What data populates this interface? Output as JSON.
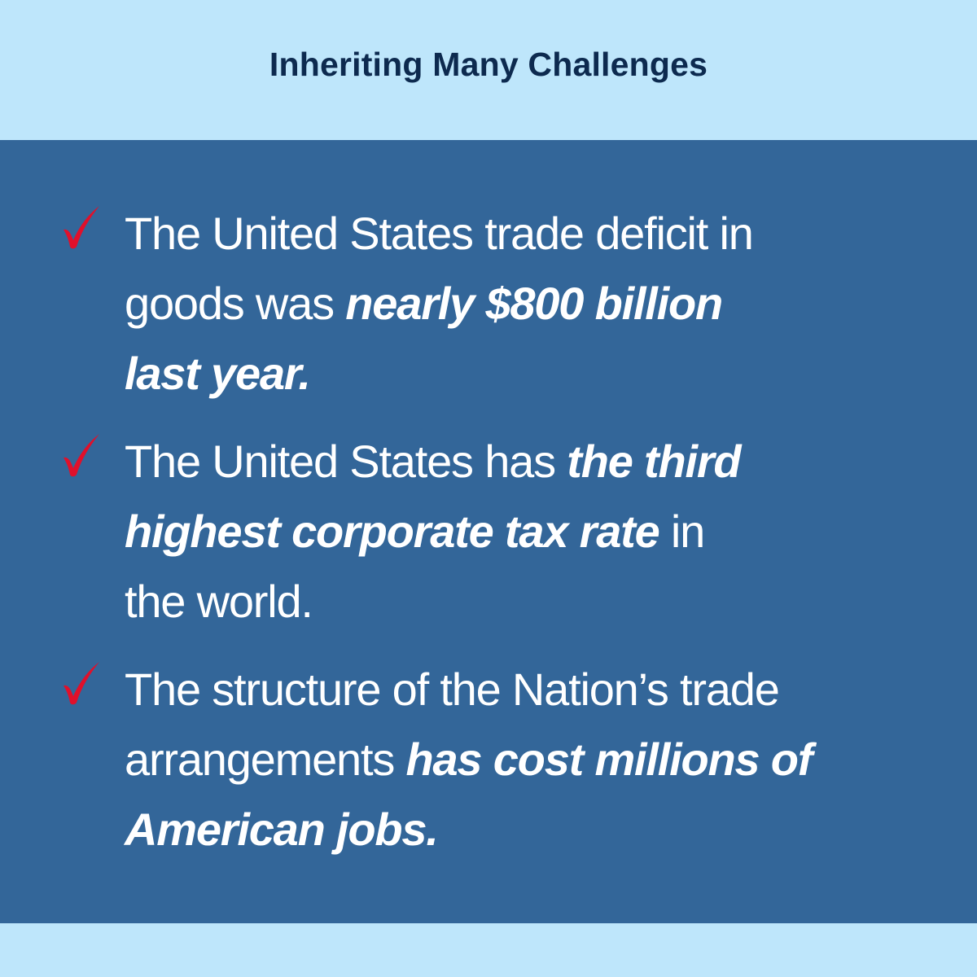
{
  "header": {
    "title": "Inheriting Many Challenges"
  },
  "colors": {
    "header_bg": "#bee6fb",
    "panel_bg": "#336699",
    "title_text": "#0d2a4f",
    "body_text": "#ffffff",
    "check_mark": "#e0102b"
  },
  "items": [
    {
      "icon": "check-mark-icon",
      "lines": [
        {
          "plain": "The United States trade deficit in",
          "emphasis": ""
        },
        {
          "plain": "goods was ",
          "emphasis": "nearly $800 billion"
        },
        {
          "plain": "",
          "emphasis": "last year."
        }
      ]
    },
    {
      "icon": "check-mark-icon",
      "lines": [
        {
          "plain": "The United States has ",
          "emphasis": "the third"
        },
        {
          "emphasis": "highest corporate tax rate",
          "plain_after": " in"
        },
        {
          "plain": "the world.",
          "emphasis": ""
        }
      ]
    },
    {
      "icon": "check-mark-icon",
      "lines": [
        {
          "plain": "The structure of the Nation’s trade",
          "emphasis": ""
        },
        {
          "plain": "arrangements ",
          "emphasis": "has cost millions of"
        },
        {
          "plain": "",
          "emphasis": "American jobs."
        }
      ]
    }
  ]
}
